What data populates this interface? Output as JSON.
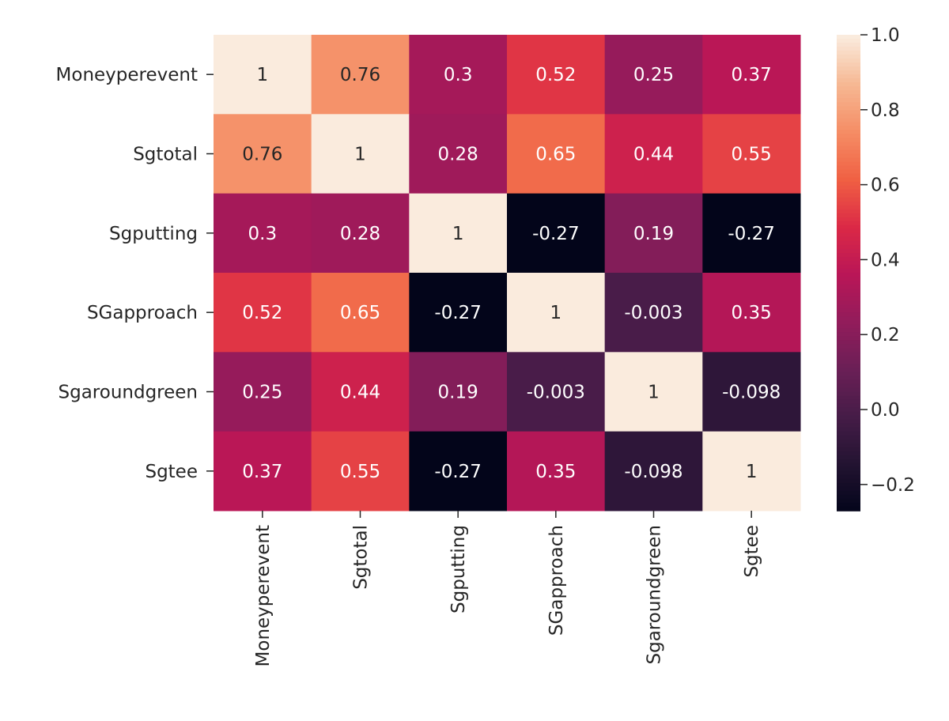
{
  "chart_data": {
    "type": "heatmap",
    "title": "",
    "xlabel": "",
    "ylabel": "",
    "row_labels": [
      "Moneyperevent",
      "Sgtotal",
      "Sgputting",
      "SGapproach",
      "Sgaroundgreen",
      "Sgtee"
    ],
    "col_labels": [
      "Moneyperevent",
      "Sgtotal",
      "Sgputting",
      "SGapproach",
      "Sgaroundgreen",
      "Sgtee"
    ],
    "values": [
      [
        1,
        0.76,
        0.3,
        0.52,
        0.25,
        0.37
      ],
      [
        0.76,
        1,
        0.28,
        0.65,
        0.44,
        0.55
      ],
      [
        0.3,
        0.28,
        1,
        -0.27,
        0.19,
        -0.27
      ],
      [
        0.52,
        0.65,
        -0.27,
        1,
        -0.003,
        0.35
      ],
      [
        0.25,
        0.44,
        0.19,
        -0.003,
        1,
        -0.098
      ],
      [
        0.37,
        0.55,
        -0.27,
        0.35,
        -0.098,
        1
      ]
    ],
    "annotations": [
      [
        "1",
        "0.76",
        "0.3",
        "0.52",
        "0.25",
        "0.37"
      ],
      [
        "0.76",
        "1",
        "0.28",
        "0.65",
        "0.44",
        "0.55"
      ],
      [
        "0.3",
        "0.28",
        "1",
        "-0.27",
        "0.19",
        "-0.27"
      ],
      [
        "0.52",
        "0.65",
        "-0.27",
        "1",
        "-0.003",
        "0.35"
      ],
      [
        "0.25",
        "0.44",
        "0.19",
        "-0.003",
        "1",
        "-0.098"
      ],
      [
        "0.37",
        "0.55",
        "-0.27",
        "0.35",
        "-0.098",
        "1"
      ]
    ],
    "colormap": "rocket",
    "colormap_stops": [
      "#03051A",
      "#221331",
      "#451C47",
      "#6A1F56",
      "#921C5B",
      "#B91657",
      "#DB2946",
      "#F06043",
      "#F58D65",
      "#F6B893",
      "#FAEBDD"
    ],
    "vmin": -0.27,
    "vmax": 1.0,
    "colorbar": {
      "ticks": [
        1.0,
        0.8,
        0.6,
        0.4,
        0.2,
        0.0,
        -0.2
      ],
      "tick_labels": [
        "1.0",
        "0.8",
        "0.6",
        "0.4",
        "0.2",
        "0.0",
        "−0.2"
      ],
      "placement": "right"
    }
  }
}
